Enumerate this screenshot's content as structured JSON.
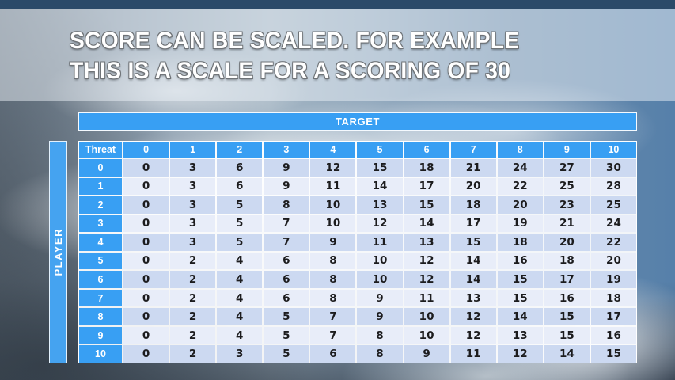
{
  "title": {
    "line1": "SCORE CAN BE SCALED. FOR EXAMPLE",
    "line2": "THIS IS A SCALE FOR A SCORING OF 30"
  },
  "colors": {
    "accent_blue": "#389ff3",
    "top_strip": "#2b4a69",
    "row_stripe_dark": "#ccd9f1",
    "row_stripe_light": "#e8edf9",
    "cell_text": "#1c1c1e",
    "header_text": "#ffffff"
  },
  "chart_data": {
    "type": "table",
    "title": "SCORE CAN BE SCALED. FOR EXAMPLE THIS IS A SCALE FOR A SCORING OF 30",
    "columns_axis_label": "TARGET",
    "rows_axis_label": "PLAYER",
    "corner_label": "Threat",
    "column_headers": [
      "0",
      "1",
      "2",
      "3",
      "4",
      "5",
      "6",
      "7",
      "8",
      "9",
      "10"
    ],
    "row_headers": [
      "0",
      "1",
      "2",
      "3",
      "4",
      "5",
      "6",
      "7",
      "8",
      "9",
      "10"
    ],
    "rows": [
      [
        0,
        3,
        6,
        9,
        12,
        15,
        18,
        21,
        24,
        27,
        30
      ],
      [
        0,
        3,
        6,
        9,
        11,
        14,
        17,
        20,
        22,
        25,
        28
      ],
      [
        0,
        3,
        5,
        8,
        10,
        13,
        15,
        18,
        20,
        23,
        25
      ],
      [
        0,
        3,
        5,
        7,
        10,
        12,
        14,
        17,
        19,
        21,
        24
      ],
      [
        0,
        3,
        5,
        7,
        9,
        11,
        13,
        15,
        18,
        20,
        22
      ],
      [
        0,
        2,
        4,
        6,
        8,
        10,
        12,
        14,
        16,
        18,
        20
      ],
      [
        0,
        2,
        4,
        6,
        8,
        10,
        12,
        14,
        15,
        17,
        19
      ],
      [
        0,
        2,
        4,
        6,
        8,
        9,
        11,
        13,
        15,
        16,
        18
      ],
      [
        0,
        2,
        4,
        5,
        7,
        9,
        10,
        12,
        14,
        15,
        17
      ],
      [
        0,
        2,
        4,
        5,
        7,
        8,
        10,
        12,
        13,
        15,
        16
      ],
      [
        0,
        2,
        3,
        5,
        6,
        8,
        9,
        11,
        12,
        14,
        15
      ]
    ]
  }
}
